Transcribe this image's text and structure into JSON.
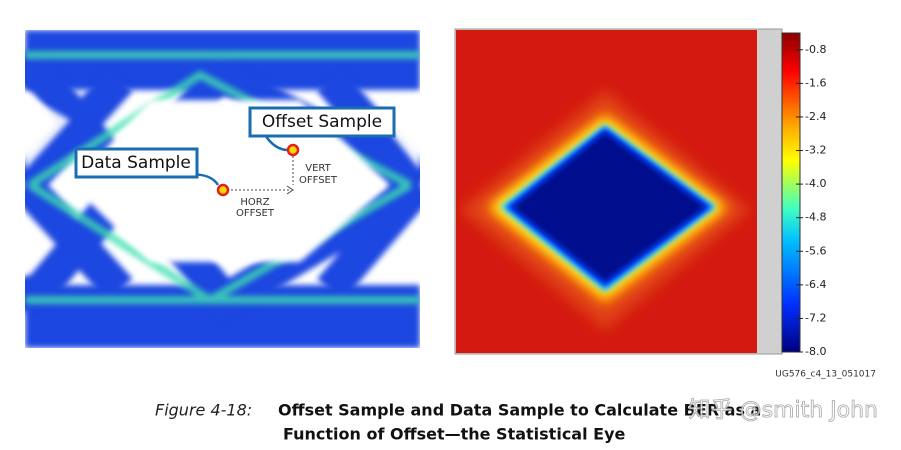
{
  "figure": {
    "eye_diagram": {
      "annotations": {
        "offset_sample": "Offset Sample",
        "data_sample": "Data Sample",
        "vert_offset": [
          "VERT",
          "OFFSET"
        ],
        "horz_offset": [
          "HORZ",
          "OFFSET"
        ]
      }
    },
    "statistical_eye": {
      "colorbar": {
        "lim": [
          -8.0,
          -0.4
        ],
        "ticks": [
          -0.8,
          -1.6,
          -2.4,
          -3.2,
          {
            "value": -4,
            "label": "-4.0"
          },
          -4.8,
          -5.6,
          -6.4,
          -7.2,
          {
            "value": -8,
            "label": "-8.0"
          }
        ]
      }
    },
    "figure_id": "UG576_c4_13_051017",
    "caption": {
      "number": "Figure 4-18:",
      "lines": [
        "Offset Sample and Data Sample to Calculate BER as a",
        "Function of Offset—the Statistical Eye"
      ]
    },
    "watermark": "知乎 @smith John"
  }
}
